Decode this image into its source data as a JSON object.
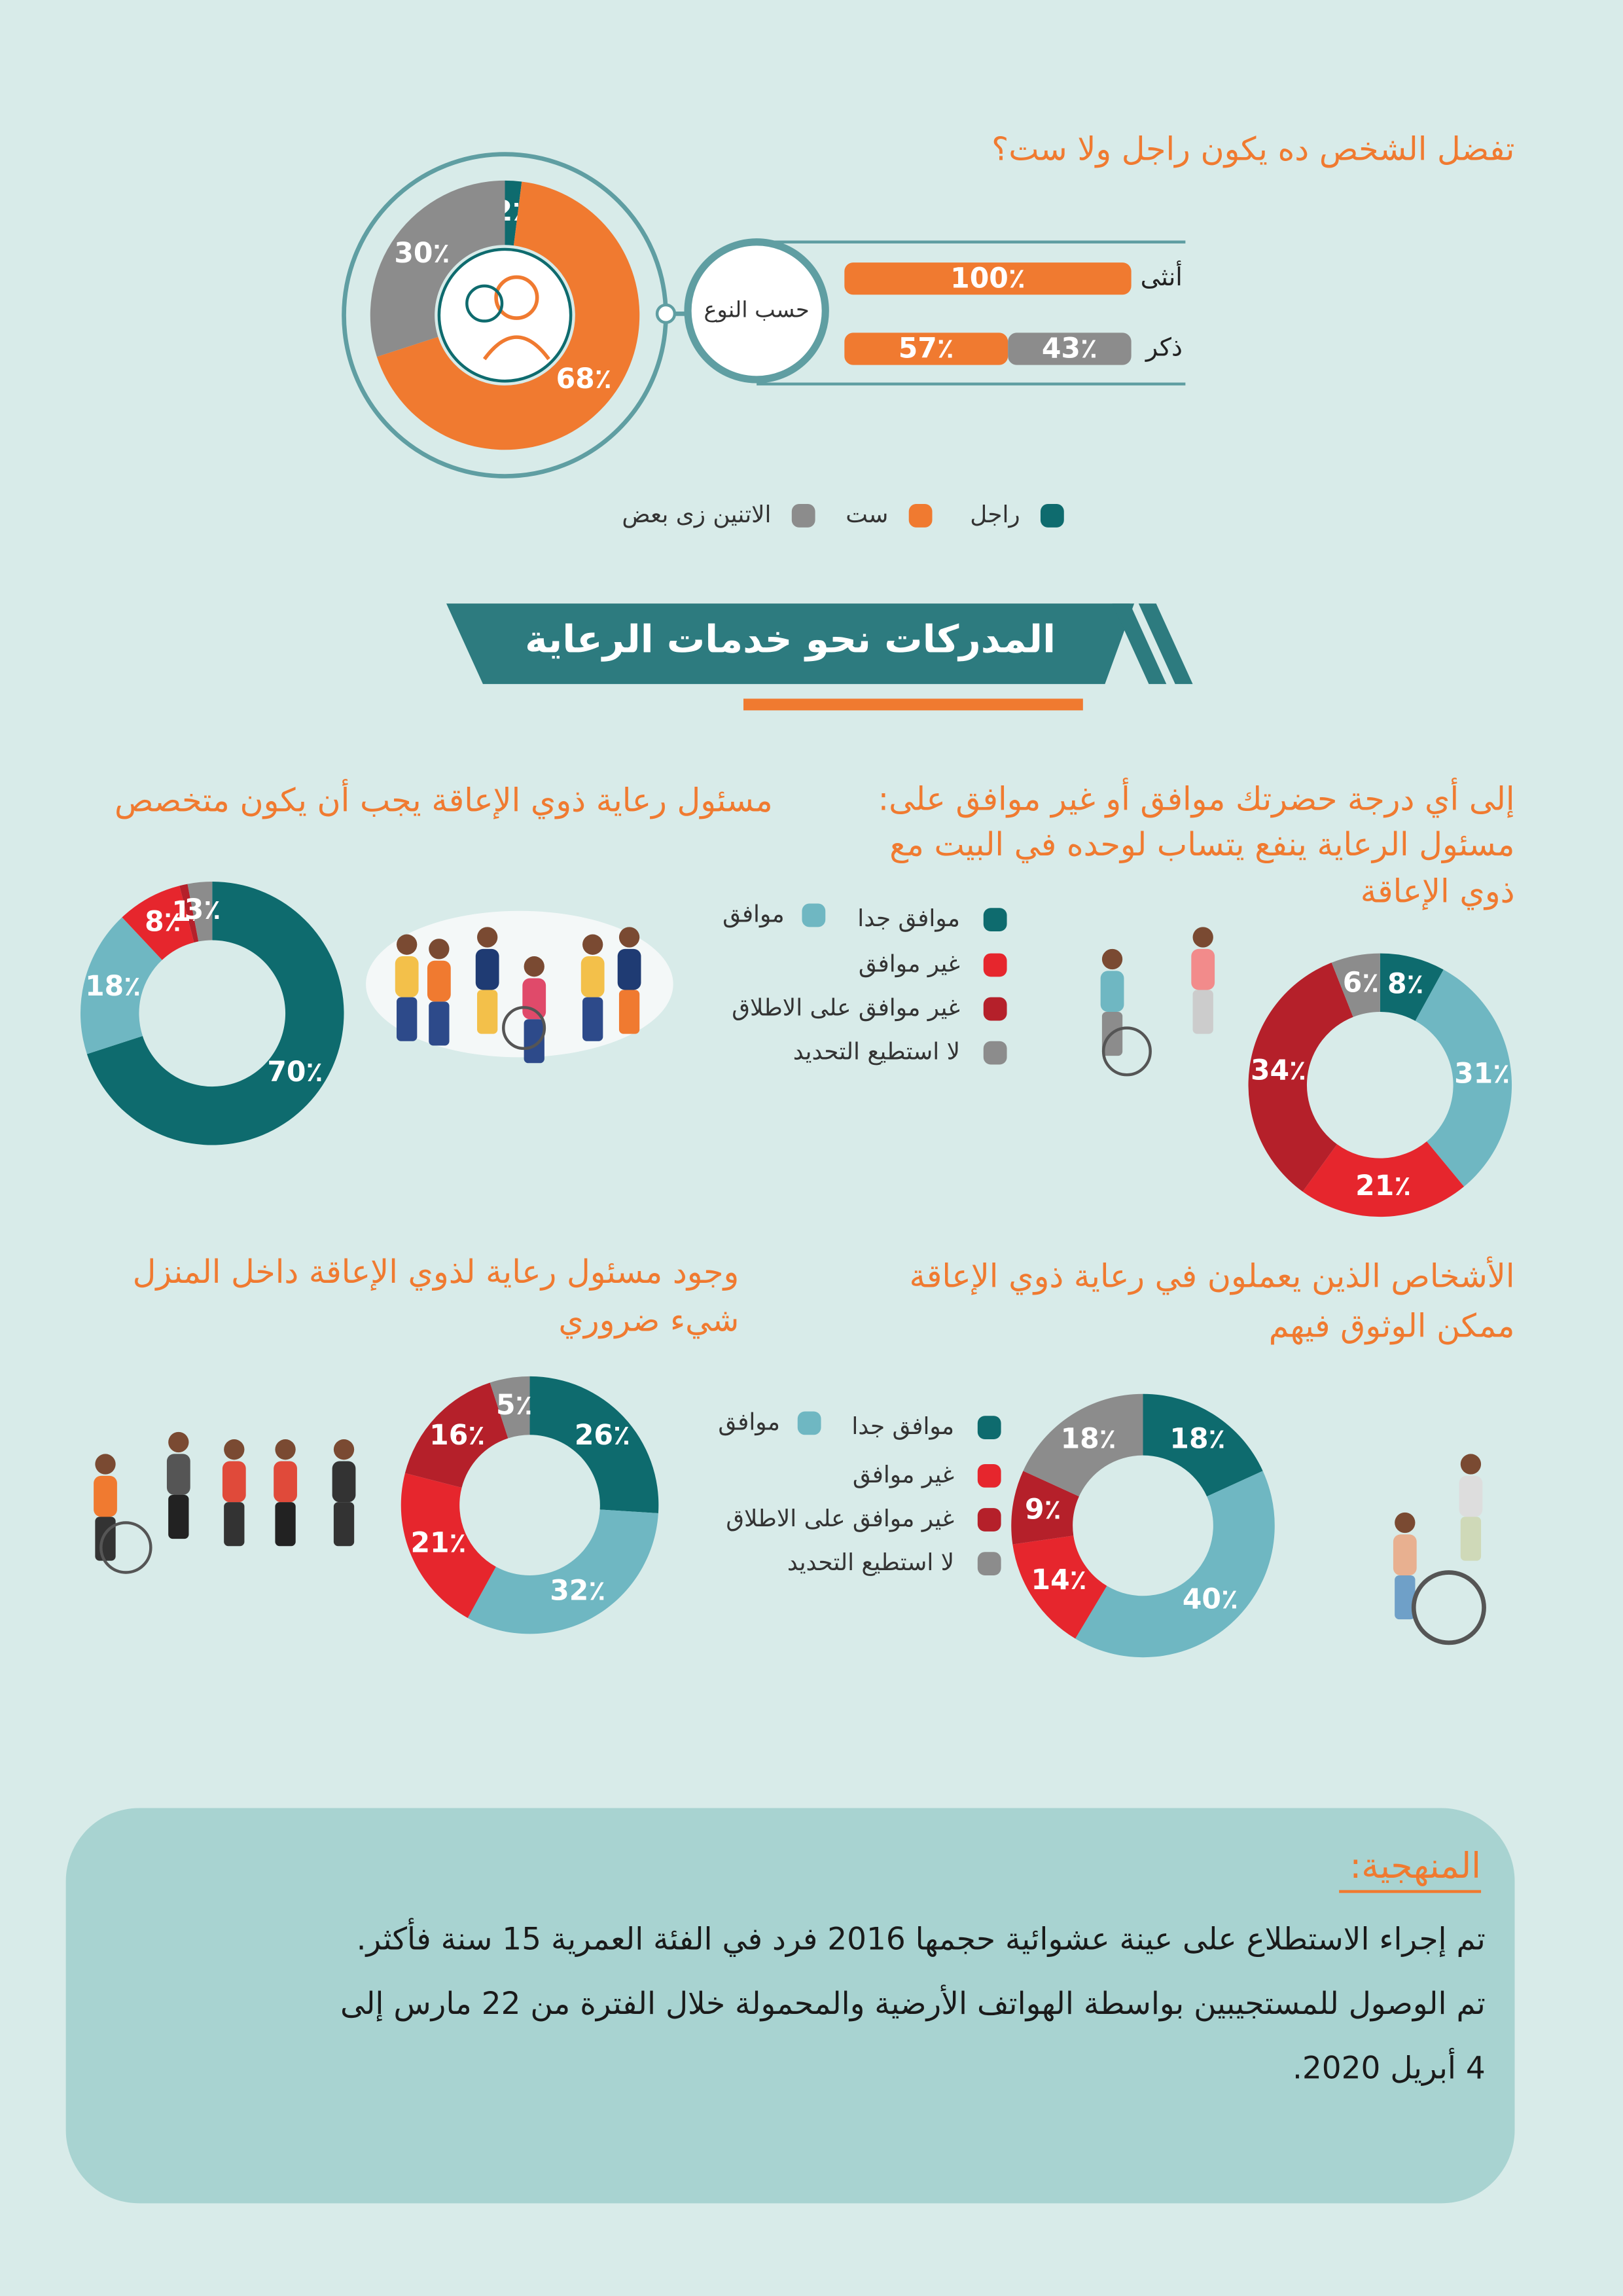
{
  "chart_data": [
    {
      "type": "donut",
      "title": "تفضل الشخص ده يكون راجل ولا ست؟",
      "categories": [
        "راجل",
        "ست",
        "الاتنين زى بعض"
      ],
      "values": [
        2,
        68,
        30
      ],
      "value_labels": [
        "2٪",
        "68٪",
        "30٪"
      ],
      "colors": [
        "#0e6b6e",
        "#f07a30",
        "#8c8c8c"
      ]
    },
    {
      "type": "bar",
      "orientation": "horizontal",
      "stacked": true,
      "title": "حسب النوع",
      "categories": [
        "أنثى",
        "ذكر"
      ],
      "xlim": [
        0,
        100
      ],
      "series": [
        {
          "color": "#f07a30",
          "values": [
            100,
            57
          ],
          "value_labels": [
            "100٪",
            "57٪"
          ]
        },
        {
          "color": "#8c8c8c",
          "values": [
            null,
            43
          ],
          "value_labels": [
            null,
            "43٪"
          ]
        }
      ]
    },
    {
      "type": "donut",
      "title": [
        "إلى أي درجة حضرتك موافق أو غير موافق على:",
        "مسئول الرعاية ينفع يتساب لوحده في البيت مع",
        "ذوي الإعاقة"
      ],
      "categories": [
        "موافق جدا",
        "موافق",
        "غير موافق",
        "غير موافق على الاطلاق",
        "لا استطيع التحديد"
      ],
      "values": [
        8,
        31,
        21,
        34,
        6
      ],
      "value_labels": [
        "8٪",
        "31٪",
        "21٪",
        "34٪",
        "6٪"
      ],
      "colors": [
        "#0e6b6e",
        "#6fb7c2",
        "#e6262d",
        "#b5202a",
        "#8c8c8c"
      ]
    },
    {
      "type": "donut",
      "title": [
        "مسئول رعاية ذوي الإعاقة يجب أن يكون متخصص"
      ],
      "values": [
        70,
        18,
        8,
        1,
        3
      ],
      "value_labels": [
        "70٪",
        "18٪",
        "8٪",
        "1٪",
        "3٪"
      ],
      "colors": [
        "#0e6b6e",
        "#6fb7c2",
        "#e6262d",
        "#b5202a",
        "#8c8c8c"
      ]
    },
    {
      "type": "donut",
      "title": [
        "الأشخاص الذين يعملون في رعاية ذوي الإعاقة",
        "ممكن الوثوق فيهم"
      ],
      "categories": [
        "موافق جدا",
        "موافق",
        "غير موافق",
        "غير موافق على الاطلاق",
        "لا استطيع التحديد"
      ],
      "values": [
        18,
        40,
        14,
        9,
        18
      ],
      "value_labels": [
        "18٪",
        "40٪",
        "14٪",
        "9٪",
        "18٪"
      ],
      "colors": [
        "#0e6b6e",
        "#6fb7c2",
        "#e6262d",
        "#b5202a",
        "#8c8c8c"
      ]
    },
    {
      "type": "donut",
      "title": [
        "وجود مسئول رعاية لذوي الإعاقة  داخل المنزل",
        "شيء ضروري"
      ],
      "values": [
        26,
        32,
        21,
        16,
        5
      ],
      "value_labels": [
        "26٪",
        "32٪",
        "21٪",
        "16٪",
        "5٪"
      ],
      "colors": [
        "#0e6b6e",
        "#6fb7c2",
        "#e6262d",
        "#b5202a",
        "#8c8c8c"
      ]
    }
  ],
  "section_title": "المدركات نحو خدمات الرعاية",
  "methodology": {
    "title": "المنهجية:",
    "lines": [
      "تم إجراء الاستطلاع على عينة عشوائية حجمها 2016 فرد في الفئة العمرية 15 سنة فأكثر.",
      "تم الوصول للمستجيبين بواسطة الهواتف الأرضية والمحمولة خلال الفترة من 22 مارس إلى",
      "4 أبريل 2020."
    ]
  }
}
